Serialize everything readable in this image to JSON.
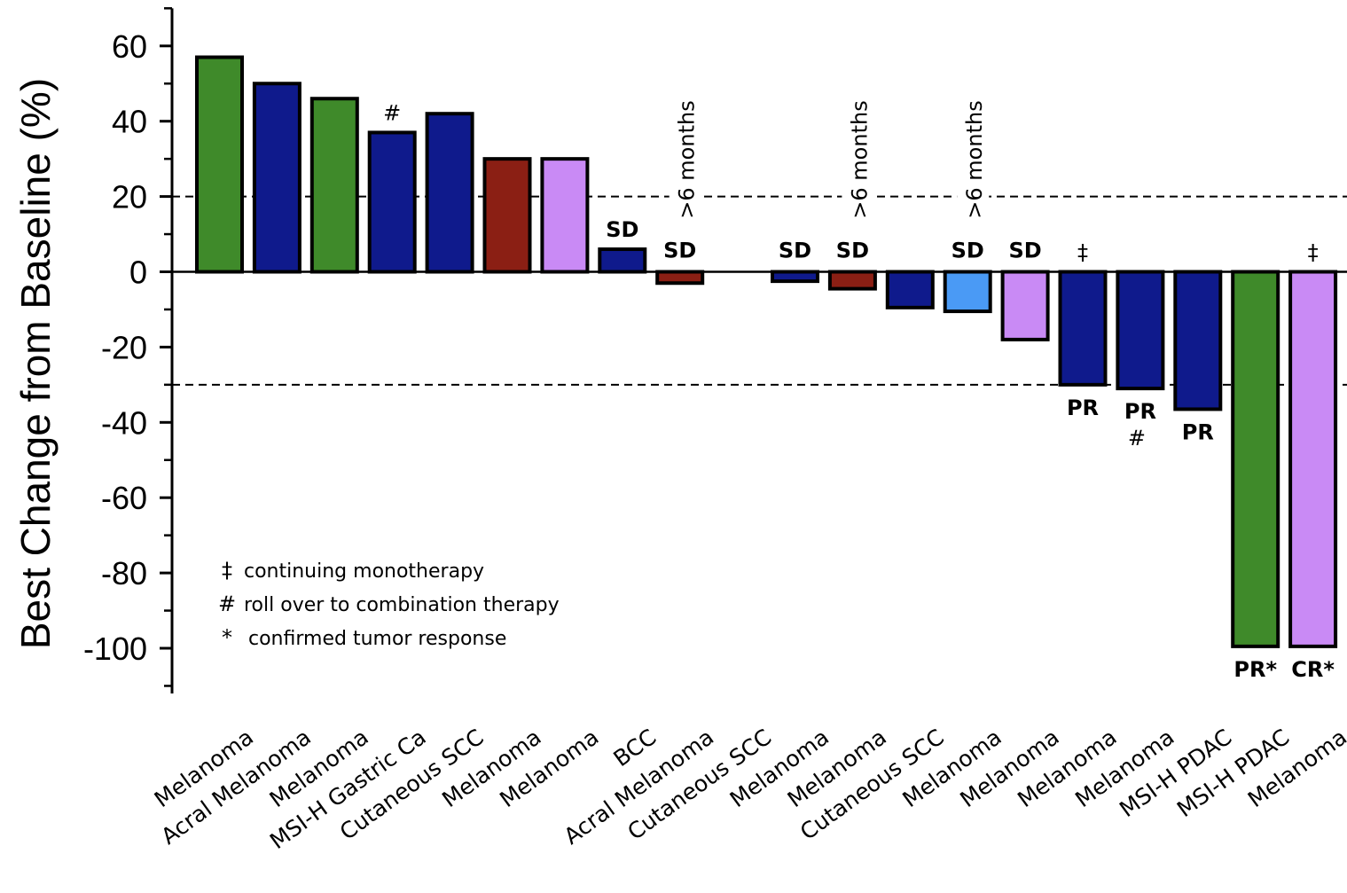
{
  "chart_data": {
    "type": "bar",
    "ylabel": "Best Change from Baseline (%)",
    "ylim": [
      -112,
      70
    ],
    "yticks": [
      60,
      40,
      20,
      0,
      -20,
      -40,
      -60,
      -80,
      -100
    ],
    "reference_lines": [
      20,
      -30
    ],
    "categories": [
      "Melanoma",
      "Acral Melanoma",
      "Melanoma",
      "MSI-H Gastric Ca",
      "Cutaneous SCC",
      "Melanoma",
      "Melanoma",
      "BCC",
      "Acral Melanoma",
      "Cutaneous SCC",
      "Melanoma",
      "Melanoma",
      "Cutaneous SCC",
      "Melanoma",
      "Melanoma",
      "Melanoma",
      "Melanoma",
      "MSI-H PDAC",
      "MSI-H PDAC",
      "Melanoma"
    ],
    "values": [
      57,
      50,
      46,
      37,
      42,
      30,
      30,
      6,
      -3,
      0,
      -2.5,
      -4.5,
      -9.5,
      -10.5,
      -18,
      -30,
      -31,
      -36.5,
      -99.5,
      -99.5
    ],
    "colors": [
      "#3f8a2a",
      "#0f1a8c",
      "#3f8a2a",
      "#0f1a8c",
      "#0f1a8c",
      "#8b1f14",
      "#c98af5",
      "#0f1a8c",
      "#8b1f14",
      "#0f1a8c",
      "#0f1a8c",
      "#8b1f14",
      "#0f1a8c",
      "#4a9af5",
      "#c98af5",
      "#0f1a8c",
      "#0f1a8c",
      "#0f1a8c",
      "#3f8a2a",
      "#c98af5"
    ],
    "response_labels": [
      "",
      "",
      "",
      "",
      "",
      "",
      "",
      "SD",
      "SD",
      "",
      "SD",
      "SD",
      "",
      "SD",
      "SD",
      "PR",
      "PR",
      "PR",
      "PR*",
      "CR*"
    ],
    "markers": [
      "",
      "",
      "",
      "#",
      "",
      "",
      "",
      "",
      "",
      "",
      "",
      "",
      "",
      "",
      "",
      "‡",
      "#",
      "",
      "",
      "‡"
    ],
    "duration_notes": [
      "",
      "",
      "",
      "",
      "",
      "",
      "",
      "",
      ">6 months",
      "",
      "",
      ">6 months",
      "",
      ">6 months",
      "",
      "",
      "",
      "",
      "",
      ""
    ],
    "legend": [
      {
        "symbol": "‡",
        "text": "continuing monotherapy"
      },
      {
        "symbol": "#",
        "text": "roll over to combination therapy"
      },
      {
        "symbol": "*",
        "text": "confirmed tumor response"
      }
    ]
  }
}
